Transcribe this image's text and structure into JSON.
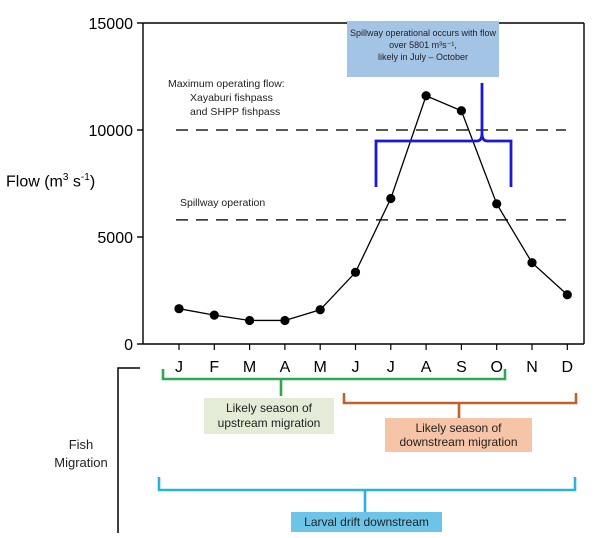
{
  "chart_data": {
    "type": "line",
    "title": "",
    "ylabel": "Flow (m3 s-1)",
    "ylabel_base": "Flow (m",
    "ylabel_sup1": "3",
    "ylabel_mid": " s",
    "ylabel_sup2": "-1",
    "ylabel_end": ")",
    "ylim": [
      0,
      15000
    ],
    "yticks": [
      "0",
      "5000",
      "10000",
      "15000"
    ],
    "ytick_values": [
      0,
      5000,
      10000,
      15000
    ],
    "categories": [
      "J",
      "F",
      "M",
      "A",
      "M",
      "J",
      "J",
      "A",
      "S",
      "O",
      "N",
      "D"
    ],
    "values": [
      1650,
      1350,
      1100,
      1100,
      1600,
      3350,
      6800,
      11600,
      10900,
      6550,
      3800,
      2300
    ],
    "reference_lines": [
      {
        "value": 10000,
        "label_lines": [
          "Maximum operating flow:",
          "Xayaburi fishpass",
          "and SHPP fishpass"
        ]
      },
      {
        "value": 5801,
        "label_lines": [
          "Spillway operation"
        ]
      }
    ],
    "annotation_lines": [
      "Spillway operational occurs with flow",
      "over 5801 m³s⁻¹,",
      "likely in July – October"
    ],
    "series_color": "#000000",
    "annotation_brace_color": "#1a1ad6"
  },
  "fish_migration": {
    "label_line1": "Fish",
    "label_line2": "Migration",
    "upstream": {
      "line1": "Likely season of",
      "line2": "upstream migration",
      "color": "#2ea84f",
      "box_color": "#e4ecd7"
    },
    "downstream": {
      "line1": "Likely season of",
      "line2": "downstream migration",
      "color": "#c0622a",
      "box_color": "#f6c4a6"
    },
    "larval": {
      "label": "Larval drift downstream",
      "color": "#2bb0e6",
      "box_color": "#6cc4e8"
    }
  }
}
